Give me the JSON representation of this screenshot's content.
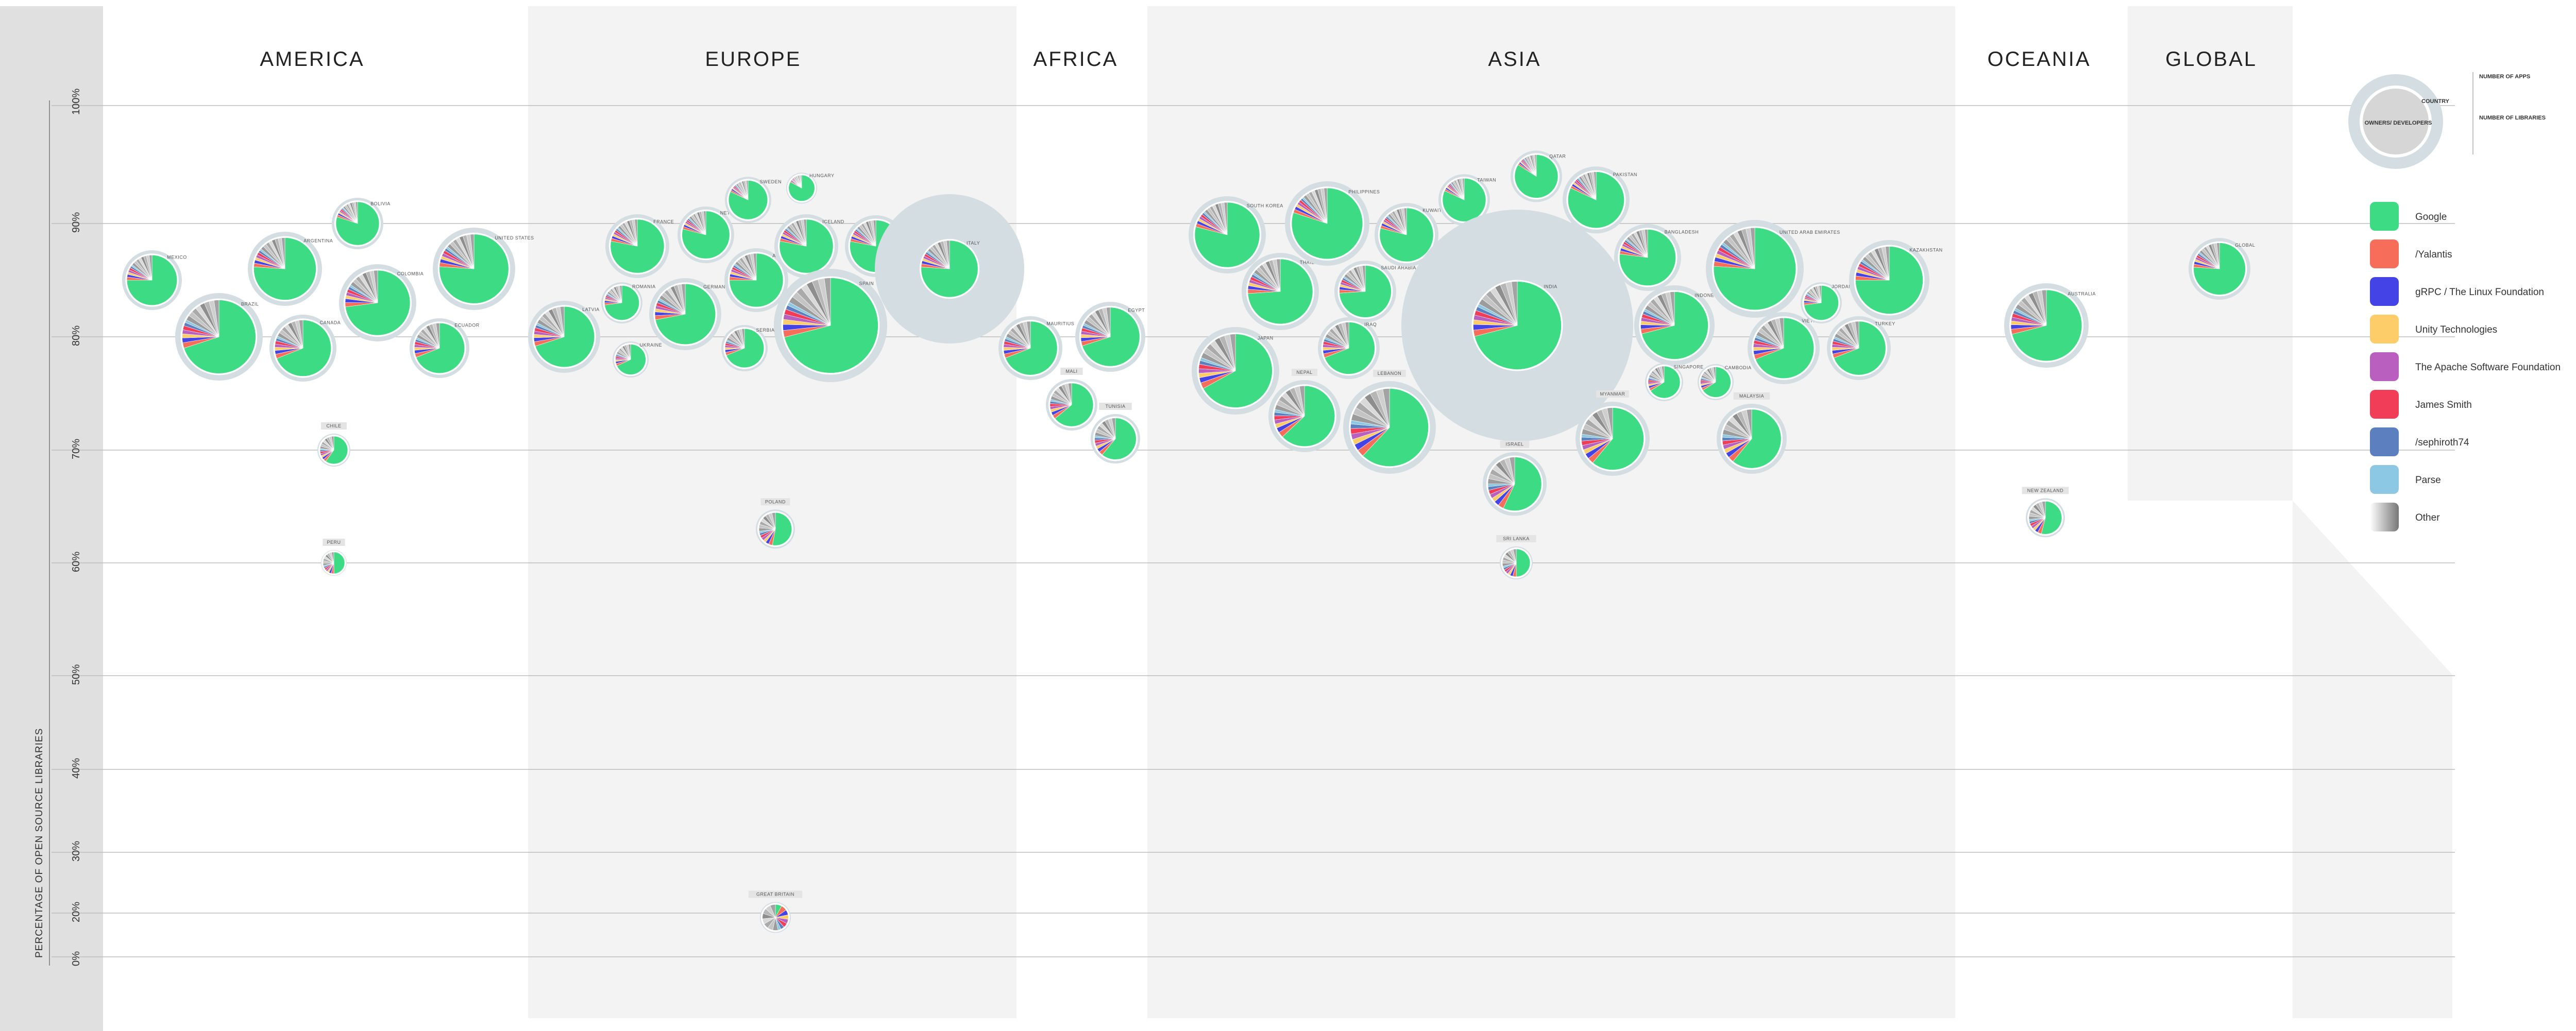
{
  "colors": {
    "Google": "#3ddc84",
    "/Yalantis": "#f66d5a",
    "gRPC / The Linux Foundation": "#4343e6",
    "Unity Technologies": "#fdcd6a",
    "The Apache Software Foundation": "#b85fbf",
    "James Smith": "#f23d58",
    "/sephiroth74": "#5c7fc0",
    "Parse": "#8cc7e3",
    "Other": "#bbbbbb",
    "bubble": "#d3dde2",
    "background": "#f3f3f3"
  },
  "legend_key": {
    "country": "COUNTRY",
    "center": "OWNERS/ DEVELOPERS",
    "apps": "NUMBER OF APPS",
    "libraries": "NUMBER OF LIBRARIES"
  },
  "chart_data": {
    "type": "bubble-pie",
    "title": "",
    "xlabel": "",
    "ylabel": "PERCENTAGE OF OPEN SOURCE LIBRARIES",
    "ylim": [
      0,
      100
    ],
    "yticks": [
      "0%",
      "20%",
      "30%",
      "40%",
      "50%",
      "60%",
      "70%",
      "80%",
      "90%",
      "100%"
    ],
    "grid": true,
    "regions": [
      "AMERICA",
      "EUROPE",
      "AFRICA",
      "ASIA",
      "OCEANIA",
      "GLOBAL"
    ],
    "legend": [
      "Google",
      "/Yalantis",
      "gRPC / The Linux Foundation",
      "Unity Technologies",
      "The Apache Software Foundation",
      "James Smith",
      "/sephiroth74",
      "Parse",
      "Other"
    ],
    "countries": [
      {
        "name": "MEXICO",
        "region": "AMERICA",
        "y": 85
      },
      {
        "name": "BRAZIL",
        "region": "AMERICA",
        "y": 80
      },
      {
        "name": "ARGENTINA",
        "region": "AMERICA",
        "y": 86
      },
      {
        "name": "CANADA",
        "region": "AMERICA",
        "y": 79
      },
      {
        "name": "BOLIVIA",
        "region": "AMERICA",
        "y": 90
      },
      {
        "name": "COLOMBIA",
        "region": "AMERICA",
        "y": 83
      },
      {
        "name": "UNITED STATES",
        "region": "AMERICA",
        "y": 86
      },
      {
        "name": "ECUADOR",
        "region": "AMERICA",
        "y": 79
      },
      {
        "name": "CHILE",
        "region": "AMERICA",
        "y": 70
      },
      {
        "name": "PERU",
        "region": "AMERICA",
        "y": 60
      },
      {
        "name": "LATVIA",
        "region": "EUROPE",
        "y": 80
      },
      {
        "name": "FRANCE",
        "region": "EUROPE",
        "y": 88
      },
      {
        "name": "ROMANIA",
        "region": "EUROPE",
        "y": 83
      },
      {
        "name": "UKRAINE",
        "region": "EUROPE",
        "y": 78
      },
      {
        "name": "GERMANY",
        "region": "EUROPE",
        "y": 82
      },
      {
        "name": "NETHERLANDS",
        "region": "EUROPE",
        "y": 89
      },
      {
        "name": "SWEDEN",
        "region": "EUROPE",
        "y": 92
      },
      {
        "name": "AUSTRIA",
        "region": "EUROPE",
        "y": 85
      },
      {
        "name": "SERBIA",
        "region": "EUROPE",
        "y": 79
      },
      {
        "name": "HUNGARY",
        "region": "EUROPE",
        "y": 93
      },
      {
        "name": "ICELAND",
        "region": "EUROPE",
        "y": 88
      },
      {
        "name": "SPAIN",
        "region": "EUROPE",
        "y": 81
      },
      {
        "name": "CZECHIA",
        "region": "EUROPE",
        "y": 88
      },
      {
        "name": "ITALY",
        "region": "EUROPE",
        "y": 86
      },
      {
        "name": "POLAND",
        "region": "EUROPE",
        "y": 63
      },
      {
        "name": "GREAT BRITAIN",
        "region": "EUROPE",
        "y": 18
      },
      {
        "name": "MAURITIUS",
        "region": "AFRICA",
        "y": 79
      },
      {
        "name": "EGYPT",
        "region": "AFRICA",
        "y": 80
      },
      {
        "name": "MALI",
        "region": "AFRICA",
        "y": 74
      },
      {
        "name": "TUNISIA",
        "region": "AFRICA",
        "y": 71
      },
      {
        "name": "SOUTH KOREA",
        "region": "ASIA",
        "y": 89
      },
      {
        "name": "THAILAND",
        "region": "ASIA",
        "y": 84
      },
      {
        "name": "JAPAN",
        "region": "ASIA",
        "y": 77
      },
      {
        "name": "NEPAL",
        "region": "ASIA",
        "y": 73
      },
      {
        "name": "PHILIPPINES",
        "region": "ASIA",
        "y": 90
      },
      {
        "name": "SAUDI ARABIA",
        "region": "ASIA",
        "y": 84
      },
      {
        "name": "IRAQ",
        "region": "ASIA",
        "y": 79
      },
      {
        "name": "LEBANON",
        "region": "ASIA",
        "y": 72
      },
      {
        "name": "KUWAIT",
        "region": "ASIA",
        "y": 89
      },
      {
        "name": "TAIWAN",
        "region": "ASIA",
        "y": 92
      },
      {
        "name": "QATAR",
        "region": "ASIA",
        "y": 94
      },
      {
        "name": "PAKISTAN",
        "region": "ASIA",
        "y": 92
      },
      {
        "name": "INDIA",
        "region": "ASIA",
        "y": 81
      },
      {
        "name": "ISRAEL",
        "region": "ASIA",
        "y": 67
      },
      {
        "name": "SRI LANKA",
        "region": "ASIA",
        "y": 60
      },
      {
        "name": "BANGLADESH",
        "region": "ASIA",
        "y": 87
      },
      {
        "name": "INDONESIA",
        "region": "ASIA",
        "y": 81
      },
      {
        "name": "MYANMAR",
        "region": "ASIA",
        "y": 71
      },
      {
        "name": "VIETNAM",
        "region": "ASIA",
        "y": 79
      },
      {
        "name": "SINGAPORE",
        "region": "ASIA",
        "y": 76
      },
      {
        "name": "CAMBODIA",
        "region": "ASIA",
        "y": 76
      },
      {
        "name": "UNITED ARAB EMIRATES",
        "region": "ASIA",
        "y": 86
      },
      {
        "name": "MALAYSIA",
        "region": "ASIA",
        "y": 71
      },
      {
        "name": "JORDAN",
        "region": "ASIA",
        "y": 83
      },
      {
        "name": "TURKEY",
        "region": "ASIA",
        "y": 79
      },
      {
        "name": "KAZAKHSTAN",
        "region": "ASIA",
        "y": 85
      },
      {
        "name": "AUSTRALIA",
        "region": "OCEANIA",
        "y": 81
      },
      {
        "name": "NEW ZEALAND",
        "region": "OCEANIA",
        "y": 64
      },
      {
        "name": "GLOBAL",
        "region": "GLOBAL",
        "y": 86
      }
    ]
  }
}
